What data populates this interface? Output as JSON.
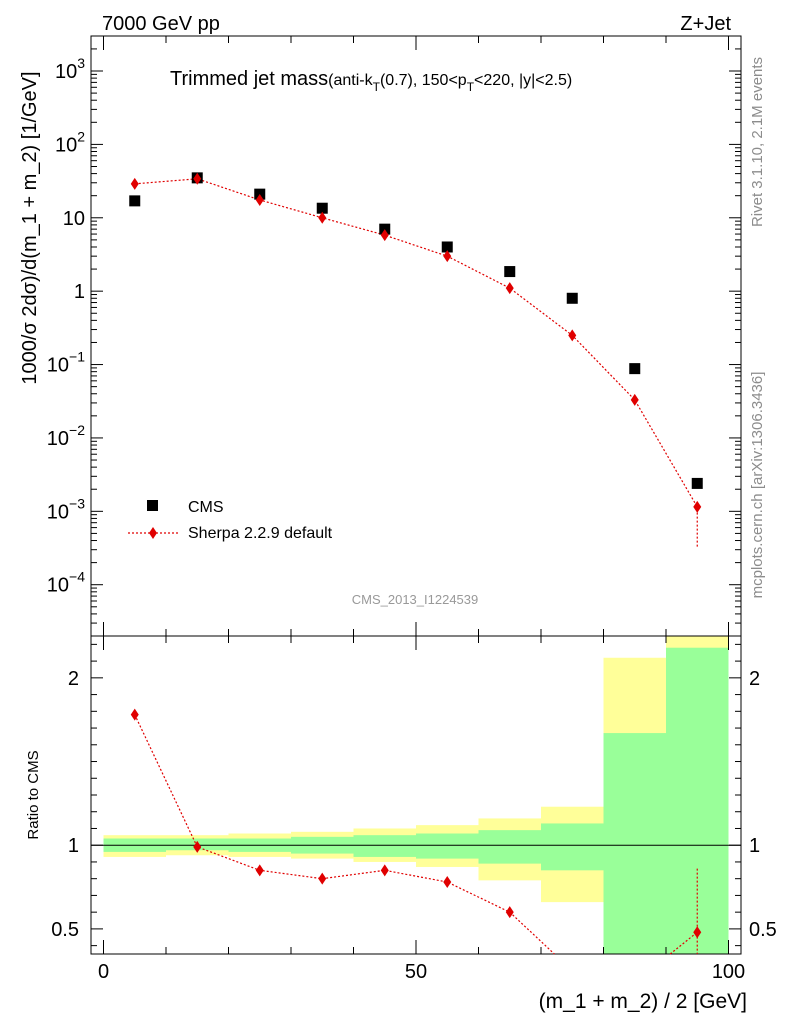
{
  "header": {
    "left": "7000 GeV pp",
    "right": "Z+Jet"
  },
  "side_labels": {
    "rivet": "Rivet 3.1.10,  2.1M events",
    "mcplots": "mcplots.cern.ch [arXiv:1306.3436]"
  },
  "chart_data": [
    {
      "type": "scatter",
      "panel": "main",
      "title_main": "Trimmed jet mass",
      "title_suffix": "(anti-k",
      "title_sub_T": "T",
      "title_cuts_1": "(0.7), 150<p",
      "title_cuts_2": "<220, |y|<2.5)",
      "watermark": "CMS_2013_I1224539",
      "ylabel": "1000/σ 2dσ)/d(m_1 + m_2) [1/GeV]",
      "yscale": "log",
      "ylim": [
        2e-05,
        3000
      ],
      "xlim": [
        -2,
        102
      ],
      "yticks": [
        {
          "value": 0.0001,
          "label": "10",
          "exp": "−4"
        },
        {
          "value": 0.001,
          "label": "10",
          "exp": "−3"
        },
        {
          "value": 0.01,
          "label": "10",
          "exp": "−2"
        },
        {
          "value": 0.1,
          "label": "10",
          "exp": "−1"
        },
        {
          "value": 1,
          "label": "1",
          "exp": ""
        },
        {
          "value": 10,
          "label": "10",
          "exp": ""
        },
        {
          "value": 100,
          "label": "10",
          "exp": "2"
        },
        {
          "value": 1000,
          "label": "10",
          "exp": "3"
        }
      ],
      "legend_position": "bottom-left",
      "series": [
        {
          "name": "CMS",
          "color": "#000000",
          "marker": "square",
          "x": [
            5,
            15,
            25,
            35,
            45,
            55,
            65,
            75,
            85,
            95
          ],
          "y": [
            17,
            35,
            21,
            13.5,
            7,
            4,
            1.85,
            0.8,
            0.088,
            0.0024
          ]
        },
        {
          "name": "Sherpa 2.2.9 default",
          "color": "#e00000",
          "marker": "diamond",
          "line": "dotted",
          "x": [
            5,
            15,
            25,
            35,
            45,
            55,
            65,
            75,
            85,
            95
          ],
          "y": [
            29,
            34,
            17.5,
            10,
            5.8,
            3.0,
            1.1,
            0.25,
            0.033,
            0.00115
          ],
          "yerr_low": [
            0,
            0,
            0,
            0,
            0,
            0,
            0,
            0,
            0,
            0.00082
          ],
          "yerr_high": [
            0,
            0,
            0,
            0,
            0,
            0,
            0,
            0,
            0,
            0.0001
          ]
        }
      ]
    },
    {
      "type": "line",
      "panel": "ratio",
      "ylabel": "Ratio to CMS",
      "xlabel": "(m_1 + m_2) / 2 [GeV]",
      "ylim": [
        0.35,
        2.25
      ],
      "xlim": [
        -2,
        102
      ],
      "xticks": [
        0,
        50,
        100
      ],
      "yticks": [
        0.5,
        1,
        2
      ],
      "reference_line": 1,
      "bands": {
        "x_edges": [
          0,
          10,
          20,
          30,
          40,
          50,
          60,
          70,
          80,
          90,
          100
        ],
        "yellow_low": [
          0.93,
          0.94,
          0.93,
          0.92,
          0.9,
          0.87,
          0.79,
          0.66,
          0.35,
          0.35
        ],
        "yellow_high": [
          1.06,
          1.06,
          1.07,
          1.08,
          1.1,
          1.12,
          1.16,
          1.23,
          2.12,
          2.25
        ],
        "green_low": [
          0.96,
          0.97,
          0.96,
          0.95,
          0.93,
          0.92,
          0.89,
          0.85,
          0.35,
          0.35
        ],
        "green_high": [
          1.04,
          1.04,
          1.04,
          1.05,
          1.06,
          1.07,
          1.09,
          1.13,
          1.67,
          2.18
        ]
      },
      "series": [
        {
          "name": "Sherpa 2.2.9 default",
          "color": "#e00000",
          "x": [
            5,
            15,
            25,
            35,
            45,
            55,
            65,
            95
          ],
          "y": [
            1.78,
            0.99,
            0.85,
            0.8,
            0.85,
            0.78,
            0.6,
            0.48
          ],
          "yerr_high": [
            0,
            0,
            0,
            0,
            0,
            0,
            0,
            0.38
          ]
        }
      ]
    }
  ]
}
